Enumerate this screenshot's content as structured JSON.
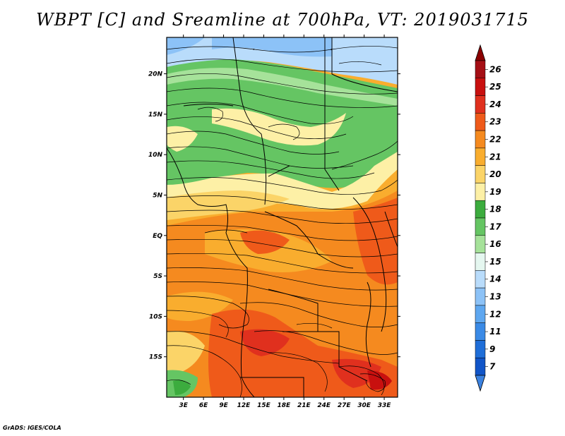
{
  "title": "WBPT [C] and Sreamline at 700hPa, VT: 2019031715",
  "footer": "GrADS: IGES/COLA",
  "map": {
    "lon_labels": [
      "3E",
      "6E",
      "9E",
      "12E",
      "15E",
      "18E",
      "21E",
      "24E",
      "27E",
      "30E",
      "33E"
    ],
    "lon_values": [
      3,
      6,
      9,
      12,
      15,
      18,
      21,
      24,
      27,
      30,
      33
    ],
    "lat_labels": [
      "20N",
      "15N",
      "10N",
      "5N",
      "EQ",
      "5S",
      "10S",
      "15S"
    ],
    "lat_values": [
      20,
      15,
      10,
      5,
      0,
      -5,
      -10,
      -15
    ],
    "lon_range": [
      0.5,
      35
    ],
    "lat_range": [
      -20,
      24.5
    ]
  },
  "colorbar": {
    "labels": [
      "26",
      "25",
      "24",
      "23",
      "22",
      "21",
      "20",
      "19",
      "18",
      "17",
      "16",
      "15",
      "14",
      "13",
      "12",
      "11",
      "9",
      "7"
    ],
    "colors": [
      "#a50f15",
      "#c8100f",
      "#e0301e",
      "#ef5a1a",
      "#f58a1f",
      "#f9ad2e",
      "#fbd468",
      "#fdf0a6",
      "#3cac3e",
      "#65c563",
      "#a6e29a",
      "#e5f7f0",
      "#b9dcfb",
      "#8cc2f7",
      "#5ea7f0",
      "#3a8ae6",
      "#1f6ed8",
      "#1155c8"
    ],
    "top_arrow_color": "#8b0000",
    "bottom_arrow_color": "#3b82e0"
  }
}
